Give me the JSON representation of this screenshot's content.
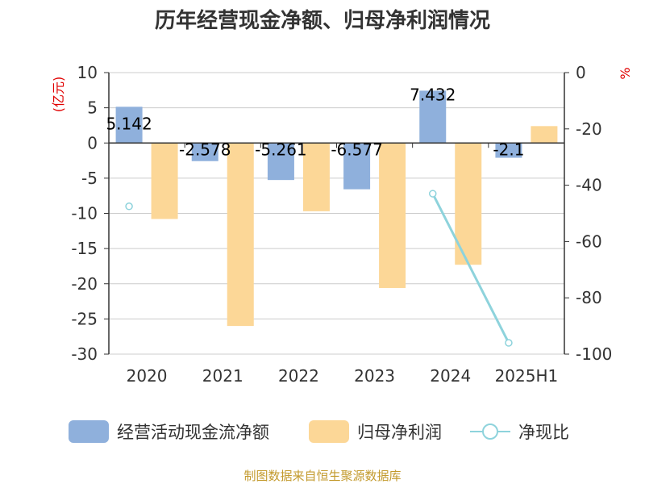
{
  "chart_data": {
    "type": "bar",
    "title": "历年经营现金净额、归母净利润情况",
    "categories": [
      "2020",
      "2021",
      "2022",
      "2023",
      "2024",
      "2025H1"
    ],
    "left_axis": {
      "unit": "(亿元)",
      "min": -30,
      "max": 10,
      "ticks": [
        10,
        5,
        0,
        -5,
        -10,
        -15,
        -20,
        -25,
        -30
      ]
    },
    "right_axis": {
      "unit": "%",
      "min": -100,
      "max": 0,
      "ticks": [
        0,
        -20,
        -40,
        -60,
        -80,
        -100
      ]
    },
    "grid": true,
    "legend_position": "bottom",
    "series": [
      {
        "name": "经营活动现金流净额",
        "kind": "bar",
        "axis": "left",
        "color": "#8fb0dc",
        "values": [
          5.142,
          -2.578,
          -5.261,
          -6.577,
          7.432,
          -2.1
        ],
        "labels": [
          "5.142",
          "-2.578",
          "-5.261",
          "-6.577",
          "7.432",
          "-2.1"
        ]
      },
      {
        "name": "归母净利润",
        "kind": "bar",
        "axis": "left",
        "color": "#fcd797",
        "values": [
          -10.8,
          -26.0,
          -9.7,
          -20.6,
          -17.3,
          2.4
        ]
      },
      {
        "name": "净现比",
        "kind": "line",
        "axis": "right",
        "color": "#8ed3dc",
        "values": [
          -47.5,
          null,
          null,
          null,
          -43.0,
          -96.0
        ]
      }
    ]
  },
  "source_note": "制图数据来自恒生聚源数据库"
}
